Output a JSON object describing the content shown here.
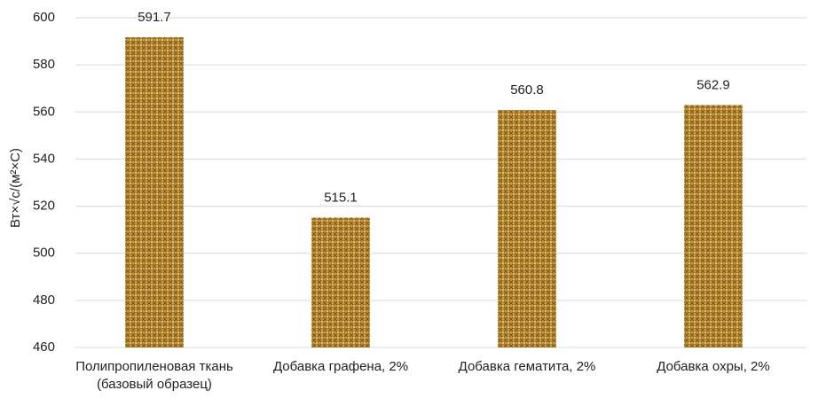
{
  "chart_data": {
    "type": "bar",
    "y_label": "Вт×√с/(м²×С)",
    "categories": [
      "Полипропиленовая ткань (базовый образец)",
      "Добавка графена, 2%",
      "Добавка гематита, 2%",
      "Добавка охры, 2%"
    ],
    "values": [
      591.7,
      515.1,
      560.8,
      562.9
    ],
    "color": "#b8862e",
    "ylim": [
      460,
      600
    ],
    "yticks": [
      460,
      480,
      500,
      520,
      540,
      560,
      580,
      600
    ],
    "grid": true
  }
}
